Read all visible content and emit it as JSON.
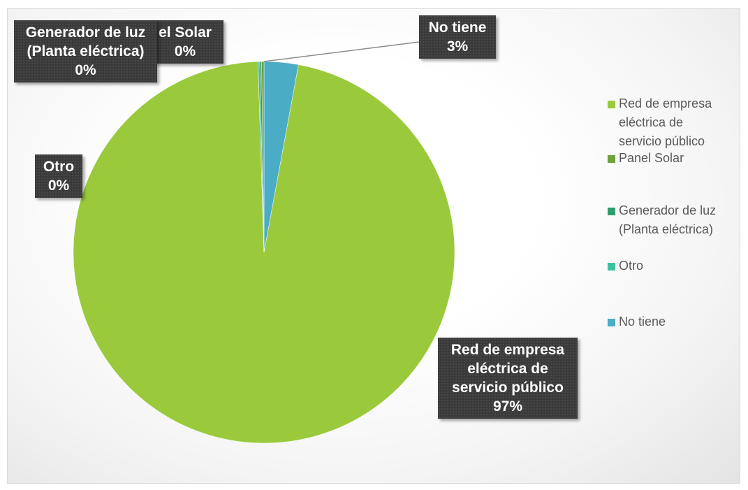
{
  "chart_data": {
    "type": "pie",
    "title": "",
    "series": [
      {
        "values": [
          97,
          0,
          0,
          0,
          3
        ],
        "categories": [
          "Red de empresa eléctrica de servicio público",
          "Panel Solar",
          "Generador de luz (Planta eléctrica)",
          "Otro",
          "No tiene"
        ]
      }
    ],
    "slices": [
      {
        "label": "Red de empresa eléctrica de servicio público",
        "value": 96.6,
        "display": "97%",
        "color": "#9ACA3C"
      },
      {
        "label": "Panel Solar",
        "value": 0.2,
        "display": "0%",
        "color": "#6FA23A"
      },
      {
        "label": "Generador de luz (Planta eléctrica)",
        "value": 0.15,
        "display": "0%",
        "color": "#2E9E6E"
      },
      {
        "label": "Otro",
        "value": 0.15,
        "display": "0%",
        "color": "#3DBFA0"
      },
      {
        "label": "No tiene",
        "value": 2.9,
        "display": "3%",
        "color": "#4BACC6"
      }
    ],
    "legend_position": "right",
    "label_style": "callout boxes"
  },
  "labels": {
    "red": [
      "Red de empresa",
      "eléctrica de",
      "servicio público",
      "97%"
    ],
    "panel": [
      "el Solar",
      "0%"
    ],
    "generador": [
      "Generador de luz",
      "(Planta eléctrica)",
      "0%"
    ],
    "otro": [
      "Otro",
      "0%"
    ],
    "notiene": [
      "No tiene",
      "3%"
    ]
  },
  "legend": {
    "red": [
      "Red de empresa",
      "eléctrica de",
      "servicio público"
    ],
    "panel": "Panel Solar",
    "generador": [
      "Generador de luz",
      "(Planta eléctrica)"
    ],
    "otro": "Otro",
    "notiene": "No tiene"
  }
}
